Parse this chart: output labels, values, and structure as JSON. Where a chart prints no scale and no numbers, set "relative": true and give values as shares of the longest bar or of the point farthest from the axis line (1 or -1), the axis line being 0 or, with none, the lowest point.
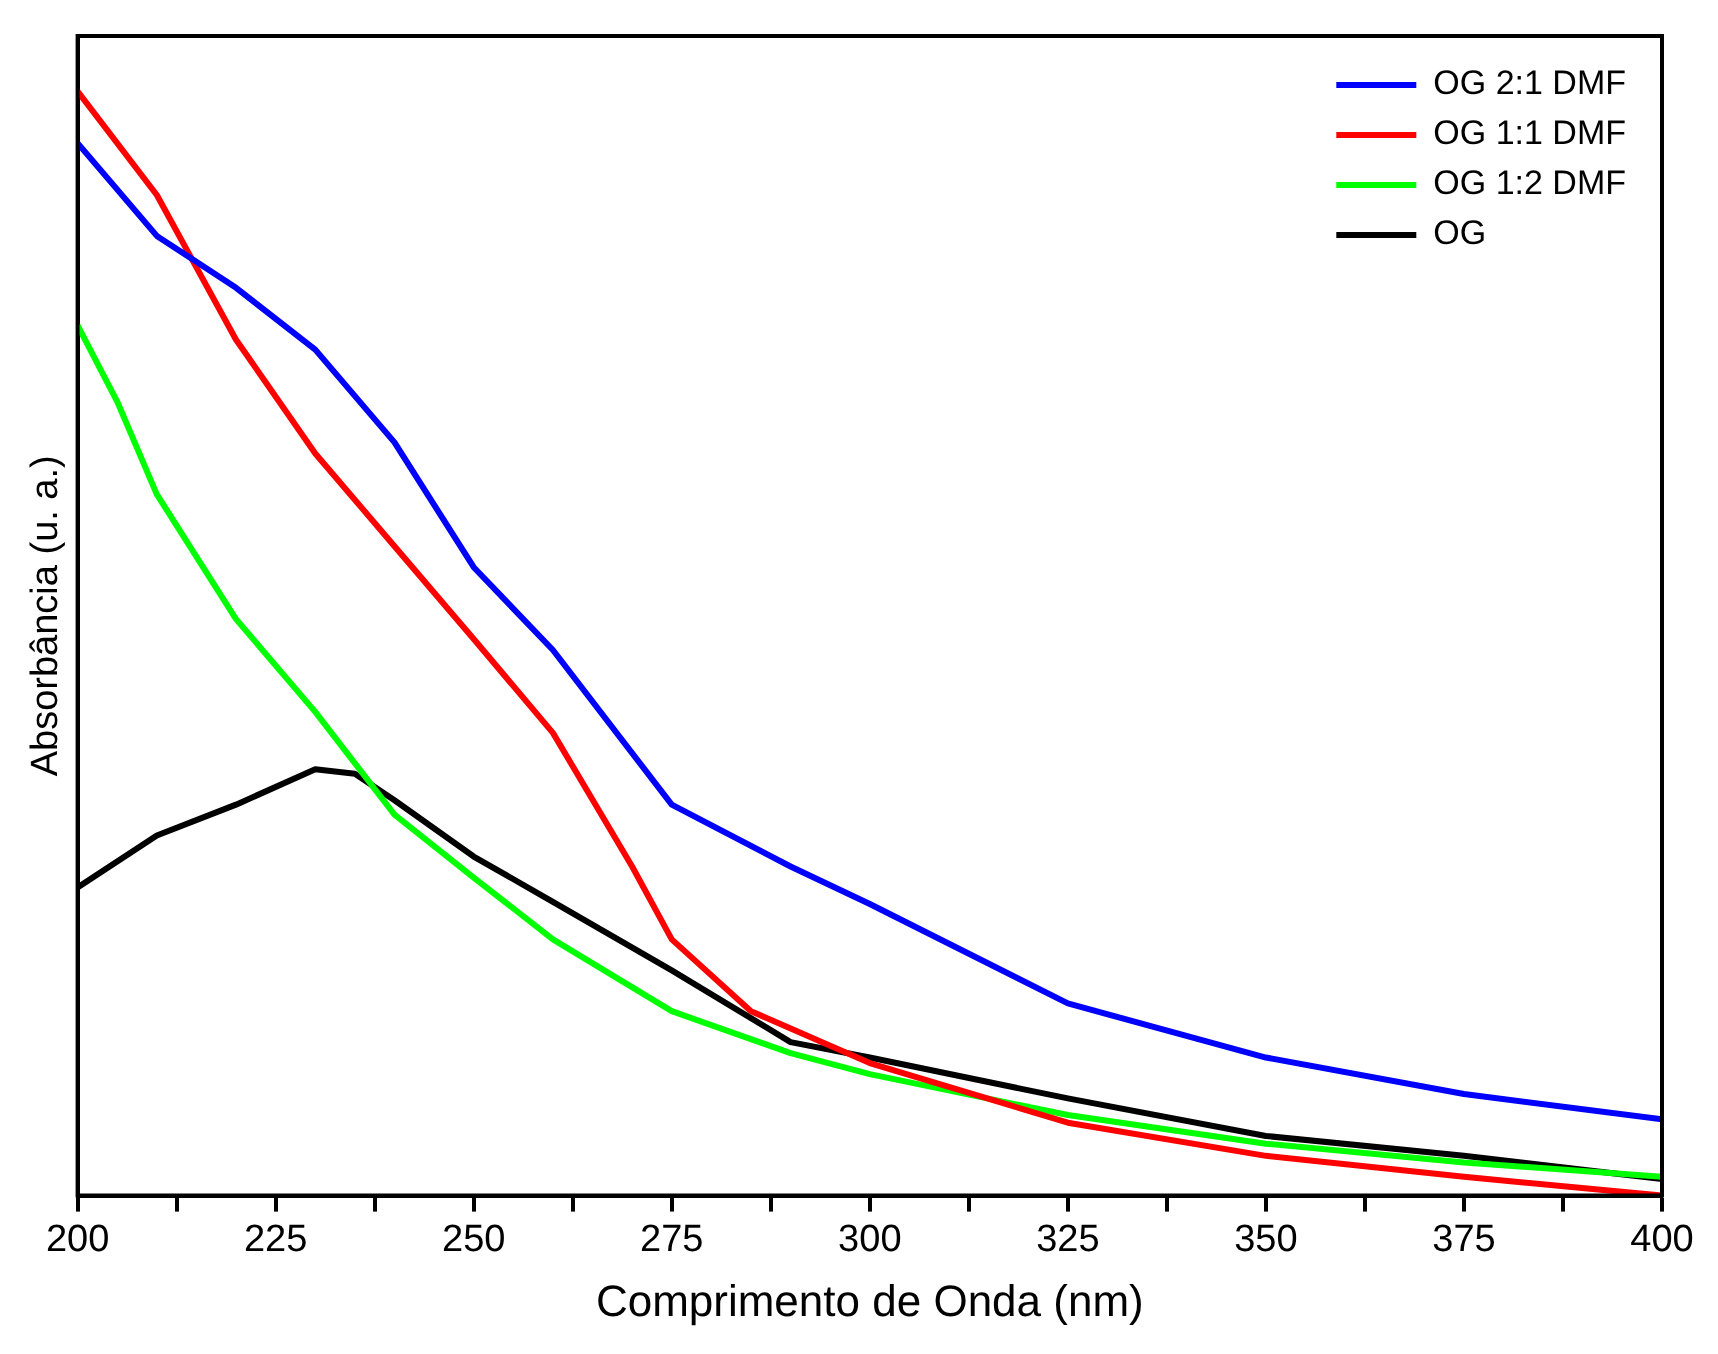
{
  "chart_data": {
    "type": "line",
    "xlabel": "Comprimento de Onda (nm)",
    "ylabel": "Absorbância (u. a.)",
    "relative": true,
    "legend": "top right",
    "grid": false,
    "marker": "none",
    "line_style": "solid",
    "xlim": [
      200,
      400
    ],
    "xticks": [
      200,
      {
        "value": 212.5,
        "label": null
      },
      225,
      {
        "value": 237.5,
        "label": null
      },
      250,
      {
        "value": 262.5,
        "label": null
      },
      275,
      {
        "value": 287.5,
        "label": null
      },
      300,
      {
        "value": 312.5,
        "label": null
      },
      325,
      {
        "value": 337.5,
        "label": null
      },
      350,
      {
        "value": 362.5,
        "label": null
      },
      375,
      {
        "value": 387.5,
        "label": null
      },
      400
    ],
    "series": [
      {
        "name": "OG 2:1 DMF",
        "color": "#0000ff",
        "x": [
          200,
          210,
          220,
          230,
          240,
          250,
          260,
          275,
          290,
          300,
          325,
          350,
          375,
          400
        ],
        "values": [
          0.953,
          0.869,
          0.822,
          0.766,
          0.682,
          0.569,
          0.494,
          0.354,
          0.298,
          0.264,
          0.174,
          0.125,
          0.092,
          0.069
        ]
      },
      {
        "name": "OG 1:1 DMF",
        "color": "#ff0000",
        "x": [
          200,
          210,
          220,
          230,
          240,
          250,
          260,
          270,
          275,
          285,
          300,
          325,
          350,
          375,
          400
        ],
        "values": [
          1.0,
          0.906,
          0.775,
          0.672,
          0.588,
          0.504,
          0.419,
          0.298,
          0.232,
          0.167,
          0.12,
          0.066,
          0.036,
          0.017,
          0
        ]
      },
      {
        "name": "OG 1:2 DMF",
        "color": "#00ff00",
        "x": [
          200,
          205,
          210,
          220,
          230,
          240,
          250,
          260,
          275,
          290,
          300,
          325,
          350,
          375,
          400
        ],
        "values": [
          0.788,
          0.719,
          0.635,
          0.522,
          0.438,
          0.345,
          0.288,
          0.232,
          0.167,
          0.129,
          0.11,
          0.073,
          0.047,
          0.03,
          0.017
        ]
      },
      {
        "name": "OG",
        "color": "#000000",
        "x": [
          200,
          210,
          220,
          230,
          235,
          240,
          250,
          260,
          275,
          290,
          300,
          325,
          350,
          375,
          400
        ],
        "values": [
          0.279,
          0.326,
          0.354,
          0.386,
          0.382,
          0.358,
          0.307,
          0.266,
          0.204,
          0.139,
          0.125,
          0.088,
          0.054,
          0.036,
          0.015
        ]
      }
    ]
  }
}
